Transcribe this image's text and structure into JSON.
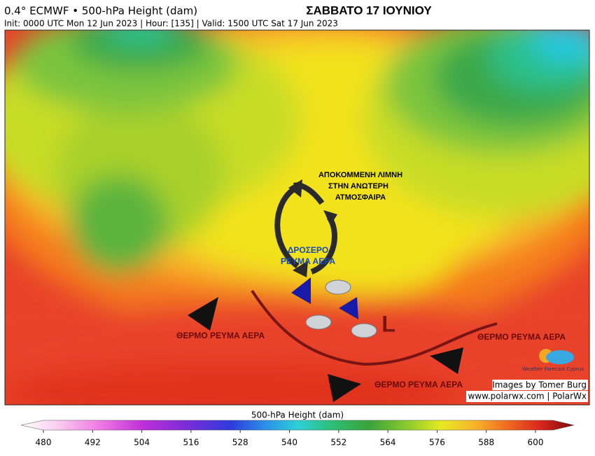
{
  "header": {
    "title": "0.4° ECMWF • 500-hPa Height (dam)",
    "subtitle": "Init: 0000 UTC Mon 12 Jun 2023 | Hour: [135] | Valid: 1500 UTC Sat 17 Jun 2023",
    "date_title": "ΣΑΒΒΑΤΟ 17 ΙΟΥΝΙΟΥ"
  },
  "annotations": {
    "cutoff_low": [
      "ΑΠΟΚΟΜΜΕΝΗ ΛΙΜΝΗ",
      "ΣΤΗΝ ΑΝΩΤΕΡΗ",
      "ΑΤΜΟΣΦΑΙΡΑ"
    ],
    "cool_flow": [
      "ΔΡΟΣΕΡΟ",
      "ΡΕΥΜΑ ΑΕΡΑ"
    ],
    "warm_flow_west": "ΘΕΡΜΟ ΡΕΥΜΑ ΑΕΡΑ",
    "warm_flow_east": "ΘΕΡΜΟ ΡΕΥΜΑ ΑΕΡΑ",
    "warm_flow_south": "ΘΕΡΜΟ ΡΕΥΜΑ ΑΕΡΑ",
    "low_marker": "L"
  },
  "credits": {
    "logo": "Weather Forecast Cyprus",
    "images_by": "Images by Tomer Burg",
    "website": "www.polarwx.com | PolarWx"
  },
  "colorbar": {
    "label": "500-hPa Height (dam)",
    "ticks": [
      480,
      492,
      504,
      516,
      528,
      540,
      552,
      564,
      576,
      588,
      600
    ]
  }
}
